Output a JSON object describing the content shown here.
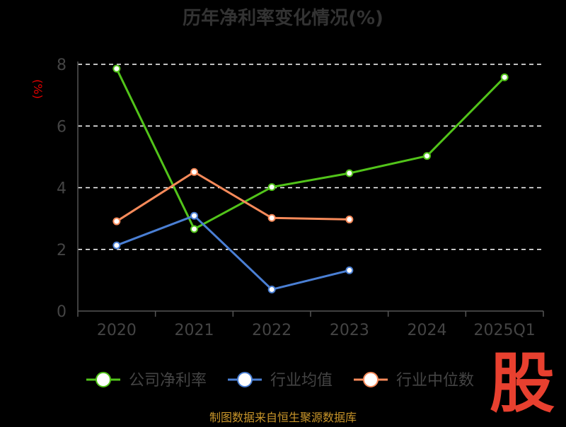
{
  "chart_data": {
    "type": "line",
    "title": "历年净利率变化情况(%)",
    "ylabel": "(%)",
    "xlabel": "",
    "categories": [
      "2020",
      "2021",
      "2022",
      "2023",
      "2024",
      "2025Q1"
    ],
    "ylim": [
      0,
      8
    ],
    "yticks": [
      "0",
      "2",
      "4",
      "6",
      "8"
    ],
    "grid": true,
    "legend_position": "bottom",
    "series": [
      {
        "name": "公司净利率",
        "color": "#52c41a",
        "values": [
          7.86,
          2.66,
          4.02,
          4.47,
          5.03,
          7.58
        ]
      },
      {
        "name": "行业均值",
        "color": "#4a7fd4",
        "values": [
          2.13,
          3.09,
          0.7,
          1.32,
          null,
          null
        ]
      },
      {
        "name": "行业中位数",
        "color": "#f78a5a",
        "values": [
          2.91,
          4.51,
          3.02,
          2.97,
          null,
          null
        ]
      }
    ]
  },
  "source_note": "制图数据来自恒生聚源数据库",
  "logo_text": "股",
  "colors": {
    "background": "#000000",
    "grid": "#ffffff",
    "axis": "#555555",
    "logo": "#e8402f",
    "note": "#c8952a"
  }
}
